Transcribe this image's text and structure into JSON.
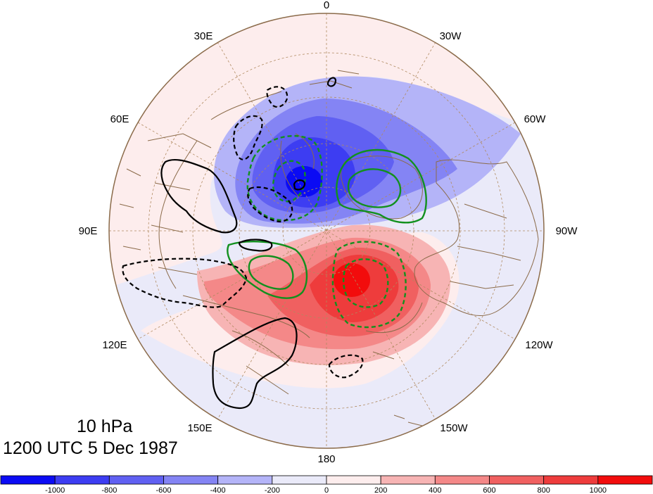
{
  "map": {
    "level_label": "10 hPa",
    "time_label": "1200 UTC 5 Dec 1987",
    "projection": "north-polar-stereographic",
    "longitude_labels": {
      "lon_0": "0",
      "lon_30w": "30W",
      "lon_60w": "60W",
      "lon_90w": "90W",
      "lon_120w": "120W",
      "lon_150w": "150W",
      "lon_180": "180",
      "lon_150e": "150E",
      "lon_120e": "120E",
      "lon_90e": "90E",
      "lon_60e": "60E",
      "lon_30e": "30E"
    },
    "colors": {
      "negative_strong": "#1010f0",
      "positive_strong": "#f01010",
      "green_contour": "#12901e",
      "black_contour": "#000000",
      "coastline": "#8b6b4a",
      "grid": "#b08a60"
    }
  },
  "colorbar": {
    "labels": [
      "-1000",
      "-800",
      "-600",
      "-400",
      "-200",
      "0",
      "200",
      "400",
      "600",
      "800",
      "1000"
    ],
    "colors": [
      "#0b0bf4",
      "#3d3df2",
      "#6060f2",
      "#8484f4",
      "#b4b4f8",
      "#eaeaf9",
      "#fdeded",
      "#f7b4b4",
      "#f48888",
      "#f06060",
      "#ee3c3c",
      "#f20c0c"
    ]
  }
}
